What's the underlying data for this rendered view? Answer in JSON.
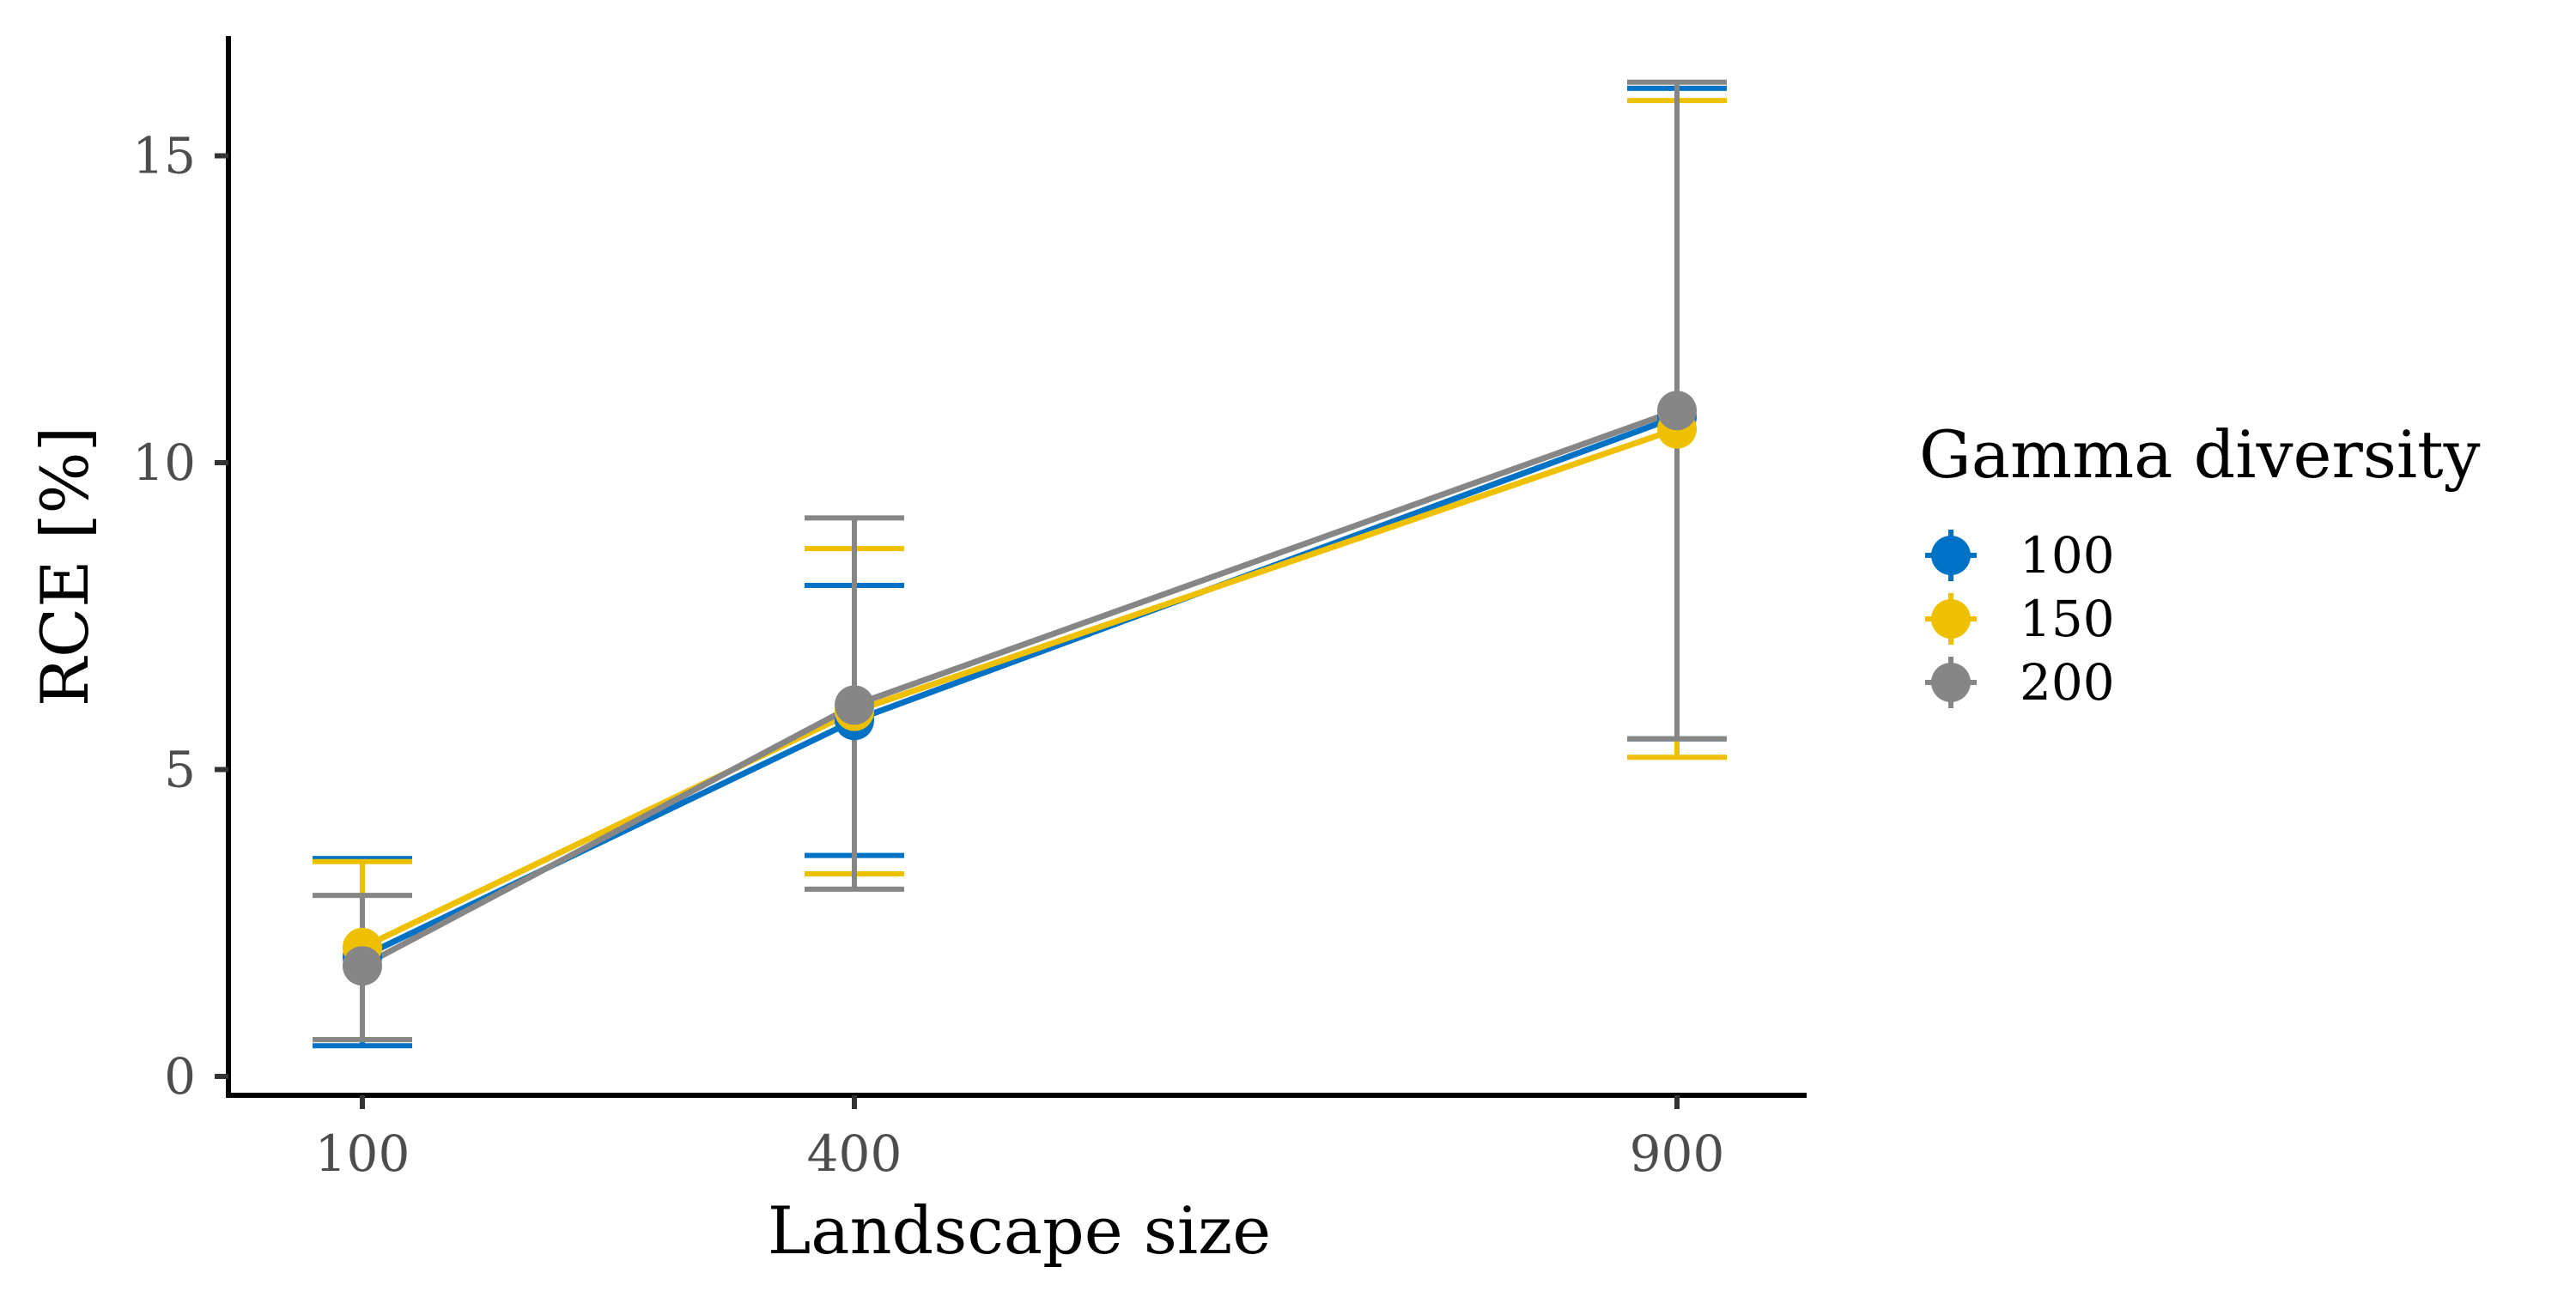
{
  "chart_data": {
    "type": "line",
    "title": "",
    "xlabel": "Landscape size",
    "ylabel": "RCE [%]",
    "x": [
      100,
      400,
      900
    ],
    "x_tick_labels": [
      "100",
      "400",
      "900"
    ],
    "y_ticks": [
      0,
      5,
      10,
      15
    ],
    "y_tick_labels": [
      "0",
      "5",
      "10",
      "15"
    ],
    "ylim": [
      -0.3,
      17
    ],
    "grid": false,
    "error_bars": true,
    "legend": {
      "title": "Gamma diversity",
      "position": "right"
    },
    "series": [
      {
        "name": "100",
        "color": "#0072C6",
        "values": [
          1.95,
          5.8,
          10.75
        ],
        "lower": [
          0.5,
          3.6,
          5.5
        ],
        "upper": [
          3.55,
          8.0,
          16.1
        ]
      },
      {
        "name": "150",
        "color": "#EFC000",
        "values": [
          2.1,
          5.95,
          10.55
        ],
        "lower": [
          0.6,
          3.3,
          5.2
        ],
        "upper": [
          3.5,
          8.6,
          15.9
        ]
      },
      {
        "name": "200",
        "color": "#868686",
        "values": [
          1.8,
          6.05,
          10.85
        ],
        "lower": [
          0.6,
          3.05,
          5.5
        ],
        "upper": [
          2.95,
          9.1,
          16.2
        ]
      }
    ]
  }
}
